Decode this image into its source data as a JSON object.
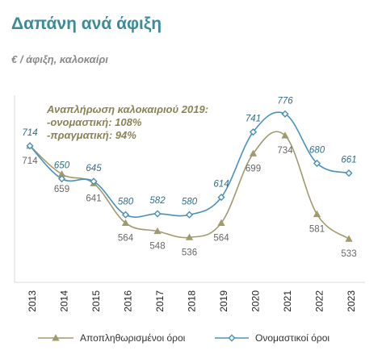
{
  "title": "Δαπάνη ανά άφιξη",
  "subtitle": "€ / άφιξη, καλοκαίρι",
  "annotation": {
    "line1": "Αναπλήρωση καλοκαιριού 2019:",
    "line2": "-ονομαστική: 108%",
    "line3": "-πραγματική: 94%"
  },
  "chart_data": {
    "type": "line",
    "x": [
      "2013",
      "2014",
      "2015",
      "2016",
      "2017",
      "2018",
      "2019",
      "2020",
      "2021",
      "2022",
      "2023"
    ],
    "ylim": [
      480,
      800
    ],
    "grid": false,
    "legend_position": "bottom",
    "series": [
      {
        "name": "Αποπληθωρισμένοι όροι",
        "values": [
          714,
          659,
          641,
          564,
          548,
          536,
          564,
          699,
          734,
          581,
          533
        ],
        "color": "#a09a6e",
        "marker": "triangle"
      },
      {
        "name": "Ονομαστικοί όροι",
        "values": [
          714,
          650,
          645,
          580,
          582,
          580,
          614,
          741,
          776,
          680,
          661
        ],
        "color": "#4a90b8",
        "marker": "diamond"
      }
    ]
  }
}
